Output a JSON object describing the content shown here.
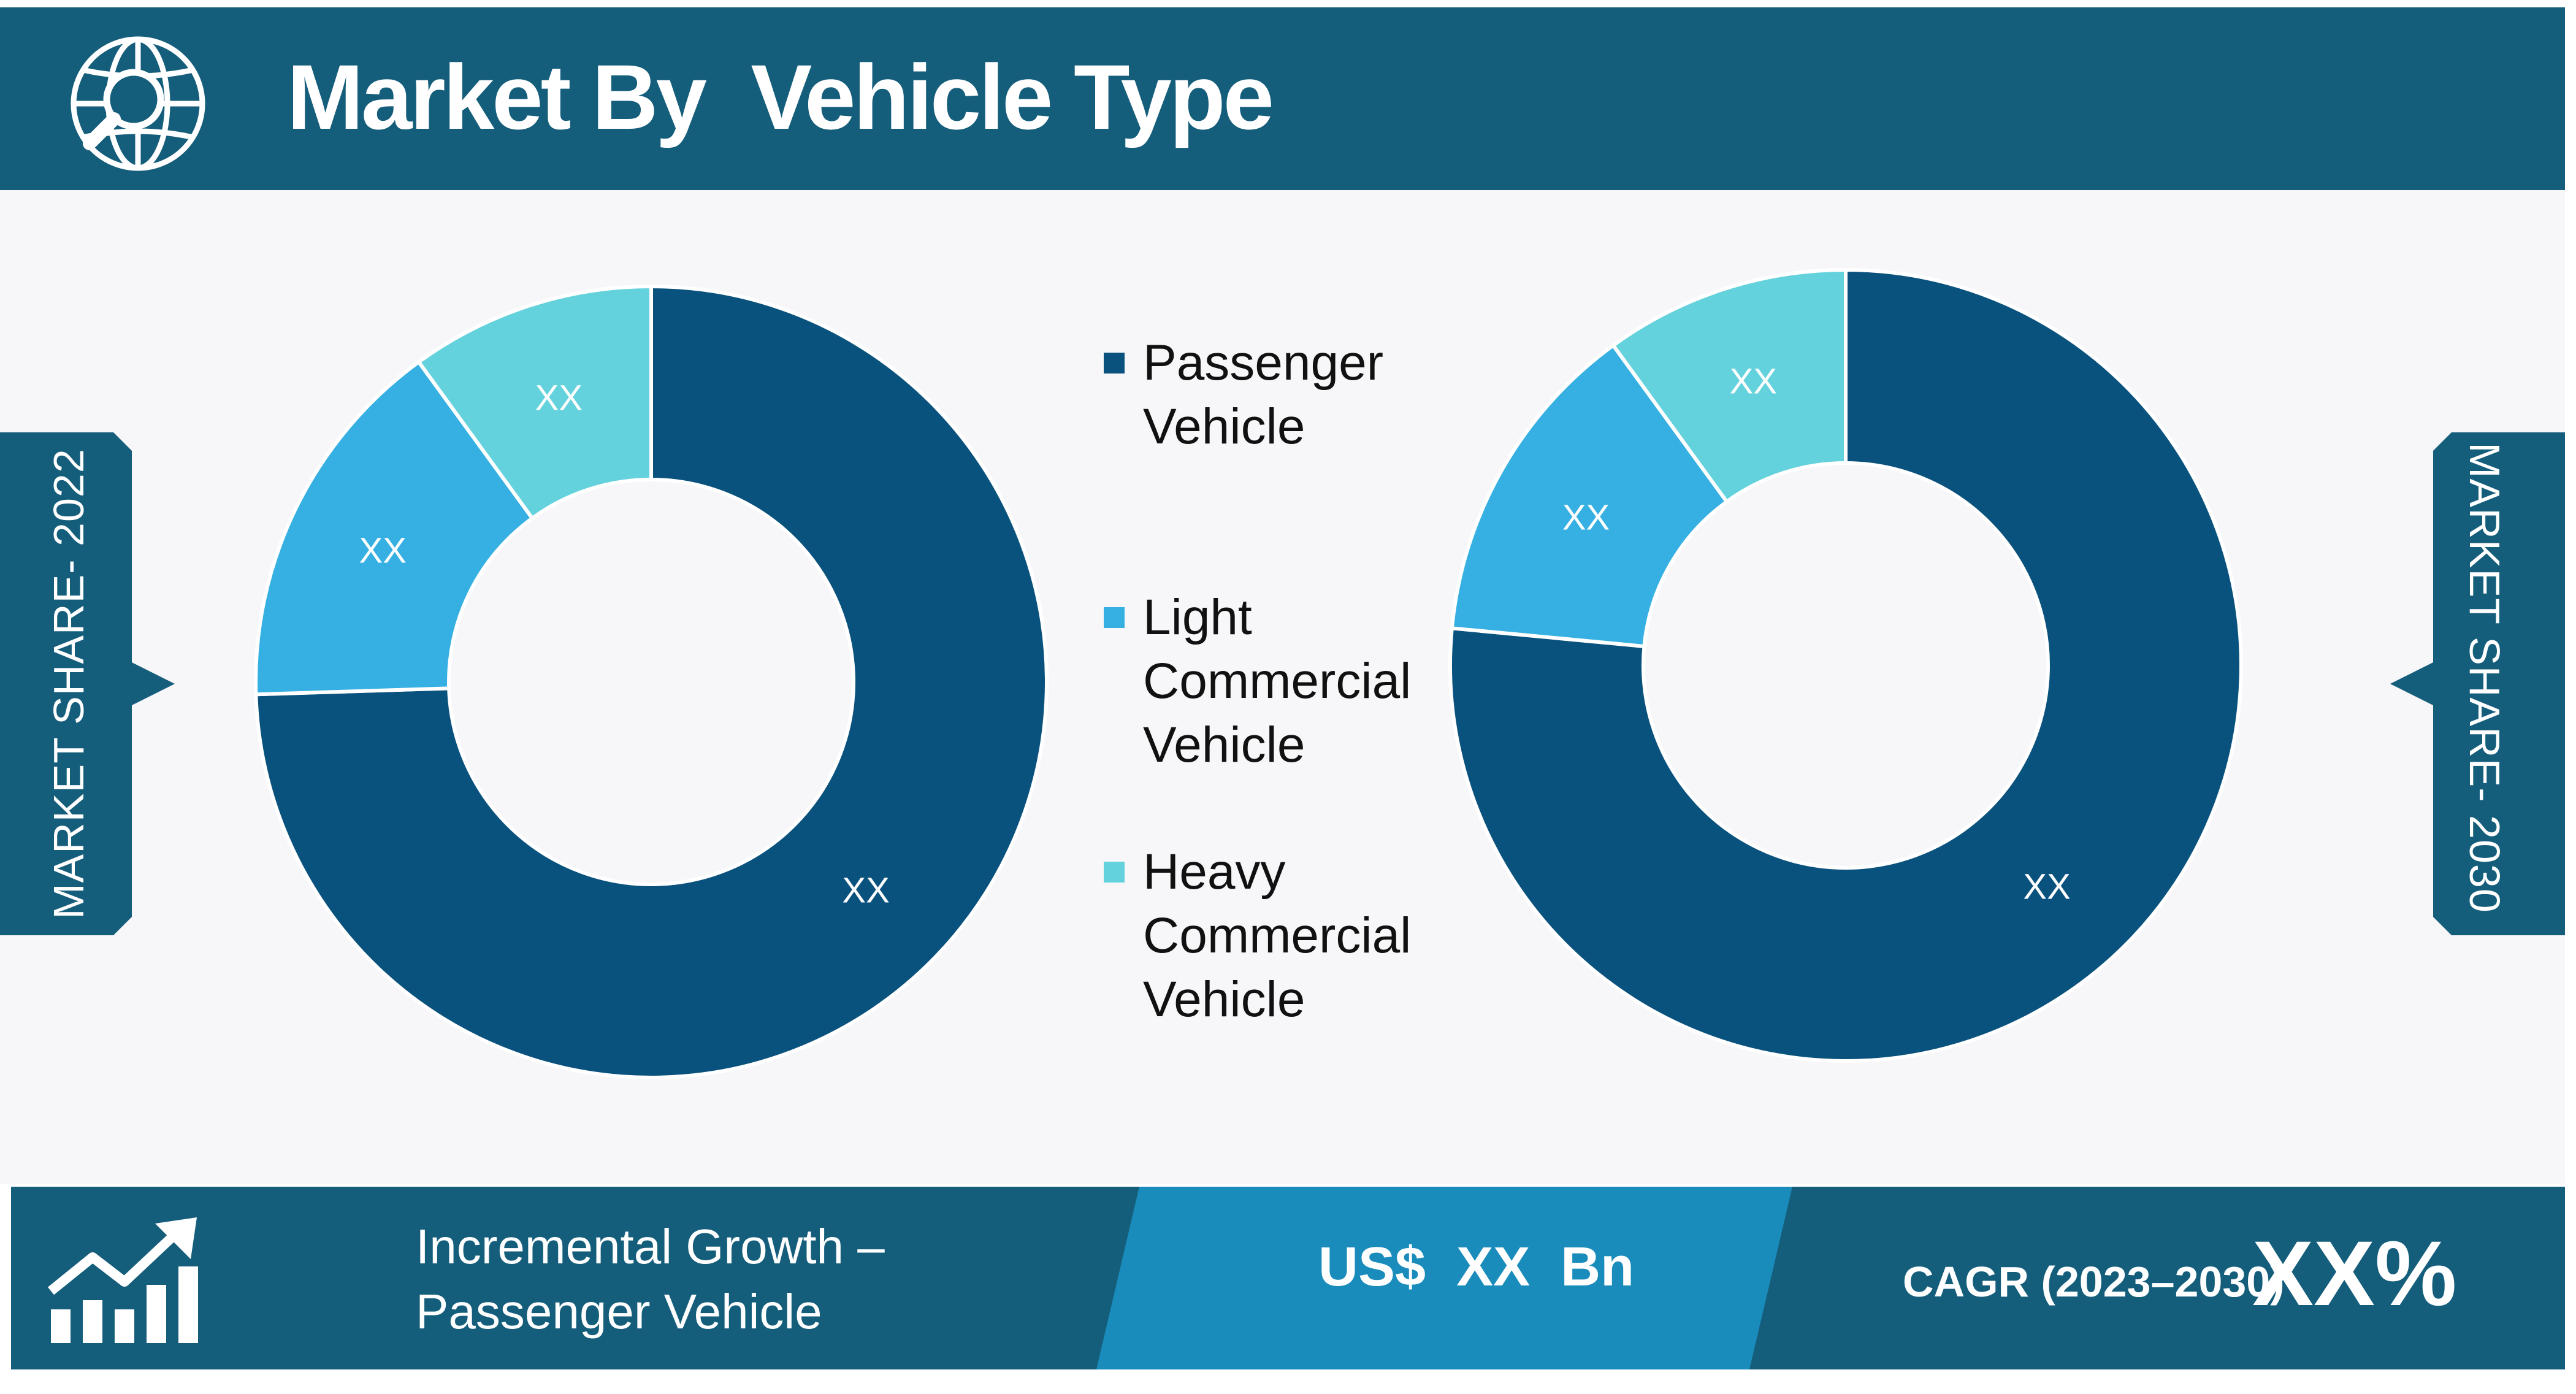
{
  "header": {
    "title": "Market By  Vehicle Type",
    "icon": "globe-search-icon"
  },
  "left_tab": {
    "label": "MARKET SHARE- 2022"
  },
  "right_tab": {
    "label": "MARKET SHARE- 2030"
  },
  "legend": {
    "items": [
      {
        "label": "Passenger\nVehicle",
        "color": "#0a527e"
      },
      {
        "label": "Light\nCommercial\nVehicle",
        "color": "#36b0e2"
      },
      {
        "label": "Heavy\nCommercial\nVehicle",
        "color": "#64d2dc"
      }
    ]
  },
  "chart_data": [
    {
      "type": "pie",
      "donut": true,
      "title": "",
      "categories": [
        "Passenger Vehicle",
        "Light Commercial Vehicle",
        "Heavy Commercial Vehicle"
      ],
      "values": [
        74.5,
        15.5,
        10
      ],
      "data_labels": [
        "XX",
        "XX",
        "XX"
      ],
      "colors": [
        "#0a527e",
        "#36b0e2",
        "#64d2dc"
      ]
    },
    {
      "type": "pie",
      "donut": true,
      "title": "",
      "categories": [
        "Passenger Vehicle",
        "Light Commercial Vehicle",
        "Heavy Commercial Vehicle"
      ],
      "values": [
        76.5,
        13.5,
        10
      ],
      "data_labels": [
        "XX",
        "XX",
        "XX"
      ],
      "colors": [
        "#0a527e",
        "#36b0e2",
        "#64d2dc"
      ]
    }
  ],
  "footer": {
    "growth_label": "Incremental Growth –\nPassenger Vehicle",
    "value": "US$  XX  Bn",
    "cagr_label": "CAGR (2023–2030)",
    "cagr_value": "XX%",
    "icon": "growth-chart-icon"
  }
}
